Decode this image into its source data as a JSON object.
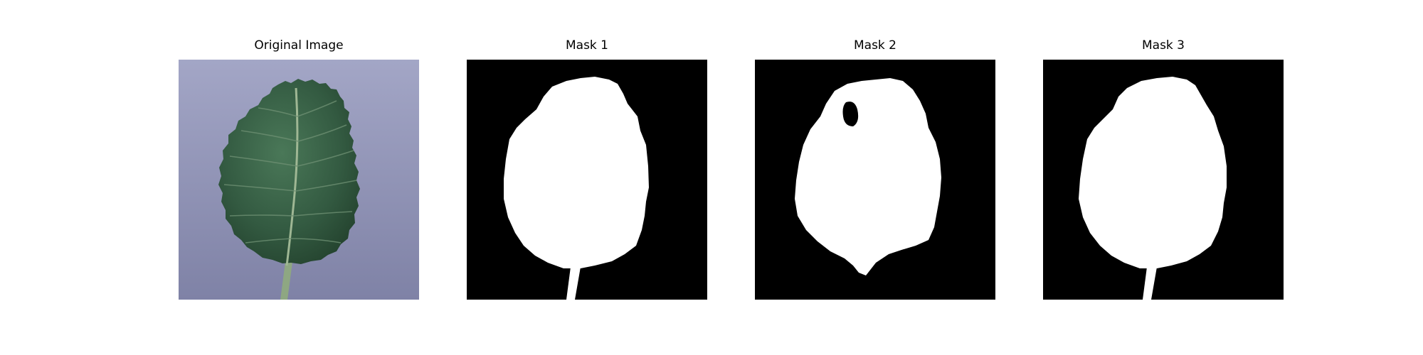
{
  "figure": {
    "panels": [
      {
        "title": "Original Image",
        "kind": "photo"
      },
      {
        "title": "Mask 1",
        "kind": "mask"
      },
      {
        "title": "Mask 2",
        "kind": "mask"
      },
      {
        "title": "Mask 3",
        "kind": "mask"
      }
    ],
    "colors": {
      "background": "#ffffff",
      "photo_background": "#8d90b2",
      "leaf_dark": "#2c4a36",
      "leaf_mid": "#3f6a4c",
      "stem": "#8aa37f",
      "mask_background": "#000000",
      "mask_foreground": "#ffffff"
    }
  }
}
